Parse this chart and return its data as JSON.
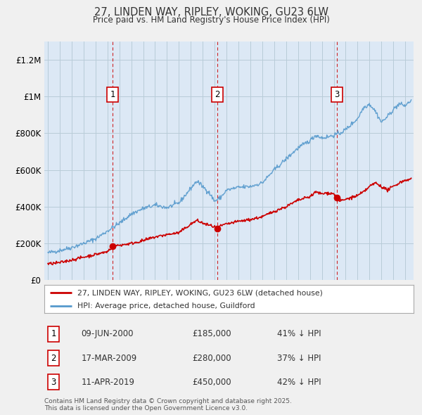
{
  "title": "27, LINDEN WAY, RIPLEY, WOKING, GU23 6LW",
  "subtitle": "Price paid vs. HM Land Registry's House Price Index (HPI)",
  "ylabel_ticks": [
    "£0",
    "£200K",
    "£400K",
    "£600K",
    "£800K",
    "£1M",
    "£1.2M"
  ],
  "ytick_vals": [
    0,
    200000,
    400000,
    600000,
    800000,
    1000000,
    1200000
  ],
  "ylim": [
    0,
    1300000
  ],
  "xlim_start": 1994.7,
  "xlim_end": 2025.7,
  "background_color": "#f0f0f0",
  "plot_bg_color": "#dce8f5",
  "grid_color": "#b8ccd8",
  "hpi_line_color": "#5599cc",
  "price_line_color": "#cc0000",
  "vline_color": "#cc0000",
  "dot_color": "#cc0000",
  "transactions": [
    {
      "num": 1,
      "date_x": 2000.44,
      "price": 185000,
      "label": "09-JUN-2000",
      "price_str": "£185,000",
      "pct": "41% ↓ HPI"
    },
    {
      "num": 2,
      "date_x": 2009.21,
      "price": 280000,
      "label": "17-MAR-2009",
      "price_str": "£280,000",
      "pct": "37% ↓ HPI"
    },
    {
      "num": 3,
      "date_x": 2019.27,
      "price": 450000,
      "label": "11-APR-2019",
      "price_str": "£450,000",
      "pct": "42% ↓ HPI"
    }
  ],
  "legend_entries": [
    "27, LINDEN WAY, RIPLEY, WOKING, GU23 6LW (detached house)",
    "HPI: Average price, detached house, Guildford"
  ],
  "footer": "Contains HM Land Registry data © Crown copyright and database right 2025.\nThis data is licensed under the Open Government Licence v3.0.",
  "hpi_anchors": [
    [
      1995.0,
      148000
    ],
    [
      1996.0,
      162000
    ],
    [
      1997.0,
      178000
    ],
    [
      1998.0,
      200000
    ],
    [
      1999.0,
      225000
    ],
    [
      2000.0,
      268000
    ],
    [
      2001.0,
      310000
    ],
    [
      2002.0,
      360000
    ],
    [
      2003.0,
      390000
    ],
    [
      2004.0,
      408000
    ],
    [
      2005.0,
      395000
    ],
    [
      2006.0,
      420000
    ],
    [
      2007.5,
      540000
    ],
    [
      2008.5,
      480000
    ],
    [
      2009.0,
      430000
    ],
    [
      2009.5,
      450000
    ],
    [
      2010.0,
      490000
    ],
    [
      2011.0,
      505000
    ],
    [
      2012.0,
      510000
    ],
    [
      2013.0,
      530000
    ],
    [
      2014.0,
      600000
    ],
    [
      2015.0,
      660000
    ],
    [
      2016.0,
      720000
    ],
    [
      2017.0,
      760000
    ],
    [
      2017.5,
      790000
    ],
    [
      2018.0,
      775000
    ],
    [
      2018.5,
      780000
    ],
    [
      2019.0,
      790000
    ],
    [
      2019.5,
      800000
    ],
    [
      2020.0,
      820000
    ],
    [
      2021.0,
      880000
    ],
    [
      2021.5,
      940000
    ],
    [
      2022.0,
      960000
    ],
    [
      2022.5,
      920000
    ],
    [
      2023.0,
      860000
    ],
    [
      2023.5,
      890000
    ],
    [
      2024.0,
      930000
    ],
    [
      2024.5,
      960000
    ],
    [
      2025.0,
      950000
    ],
    [
      2025.5,
      980000
    ]
  ],
  "price_anchors": [
    [
      1995.0,
      88000
    ],
    [
      1996.0,
      95000
    ],
    [
      1997.0,
      110000
    ],
    [
      1998.0,
      125000
    ],
    [
      1999.0,
      140000
    ],
    [
      2000.0,
      155000
    ],
    [
      2000.44,
      185000
    ],
    [
      2001.0,
      190000
    ],
    [
      2002.0,
      200000
    ],
    [
      2003.0,
      215000
    ],
    [
      2004.0,
      235000
    ],
    [
      2005.0,
      248000
    ],
    [
      2006.0,
      258000
    ],
    [
      2007.0,
      305000
    ],
    [
      2007.5,
      325000
    ],
    [
      2008.0,
      310000
    ],
    [
      2009.0,
      290000
    ],
    [
      2009.21,
      280000
    ],
    [
      2009.5,
      295000
    ],
    [
      2010.0,
      305000
    ],
    [
      2011.0,
      320000
    ],
    [
      2012.0,
      330000
    ],
    [
      2013.0,
      345000
    ],
    [
      2014.0,
      375000
    ],
    [
      2015.0,
      400000
    ],
    [
      2016.0,
      435000
    ],
    [
      2017.0,
      455000
    ],
    [
      2017.5,
      480000
    ],
    [
      2018.0,
      470000
    ],
    [
      2018.5,
      475000
    ],
    [
      2019.0,
      470000
    ],
    [
      2019.27,
      450000
    ],
    [
      2019.5,
      430000
    ],
    [
      2020.0,
      440000
    ],
    [
      2021.0,
      460000
    ],
    [
      2021.5,
      480000
    ],
    [
      2022.0,
      510000
    ],
    [
      2022.5,
      530000
    ],
    [
      2023.0,
      510000
    ],
    [
      2023.5,
      490000
    ],
    [
      2024.0,
      510000
    ],
    [
      2024.5,
      530000
    ],
    [
      2025.0,
      545000
    ],
    [
      2025.5,
      550000
    ]
  ]
}
